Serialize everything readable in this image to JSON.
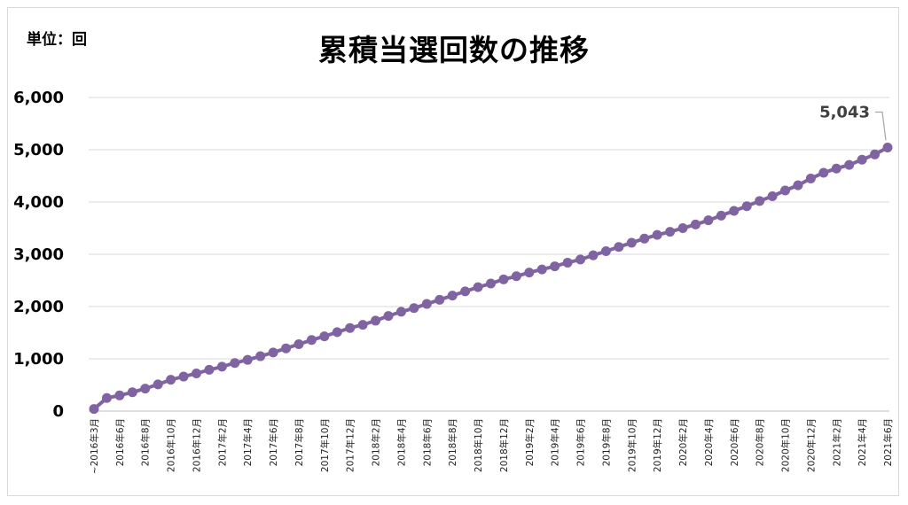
{
  "unit_label": "単位：回",
  "chart_data": {
    "type": "line",
    "title": "累積当選回数の推移",
    "xlabel": "",
    "ylabel": "",
    "ylim": [
      0,
      6000
    ],
    "yticks": [
      "0",
      "1,000",
      "2,000",
      "3,000",
      "4,000",
      "5,000",
      "6,000"
    ],
    "grid": true,
    "legend": "none",
    "series_color": "#8064a2",
    "x": [
      "~2016年3月",
      "2016年5月",
      "2016年6月",
      "2016年7月",
      "2016年8月",
      "2016年9月",
      "2016年10月",
      "2016年11月",
      "2016年12月",
      "2017年1月",
      "2017年2月",
      "2017年3月",
      "2017年4月",
      "2017年5月",
      "2017年6月",
      "2017年7月",
      "2017年8月",
      "2017年9月",
      "2017年10月",
      "2017年11月",
      "2017年12月",
      "2018年1月",
      "2018年2月",
      "2018年3月",
      "2018年4月",
      "2018年5月",
      "2018年6月",
      "2018年7月",
      "2018年8月",
      "2018年9月",
      "2018年10月",
      "2018年11月",
      "2018年12月",
      "2019年1月",
      "2019年2月",
      "2019年3月",
      "2019年4月",
      "2019年5月",
      "2019年6月",
      "2019年7月",
      "2019年8月",
      "2019年9月",
      "2019年10月",
      "2019年11月",
      "2019年12月",
      "2020年1月",
      "2020年2月",
      "2020年3月",
      "2020年4月",
      "2020年5月",
      "2020年6月",
      "2020年7月",
      "2020年8月",
      "2020年9月",
      "2020年10月",
      "2020年11月",
      "2020年12月",
      "2021年1月",
      "2021年2月",
      "2021年3月",
      "2021年4月",
      "2021年5月",
      "2021年6月"
    ],
    "xtick_labels": [
      "~2016年3月",
      "2016年6月",
      "2016年8月",
      "2016年10月",
      "2016年12月",
      "2017年2月",
      "2017年4月",
      "2017年6月",
      "2017年8月",
      "2017年10月",
      "2017年12月",
      "2018年2月",
      "2018年4月",
      "2018年6月",
      "2018年8月",
      "2018年10月",
      "2018年12月",
      "2019年2月",
      "2019年4月",
      "2019年6月",
      "2019年8月",
      "2019年10月",
      "2019年12月",
      "2020年2月",
      "2020年4月",
      "2020年6月",
      "2020年8月",
      "2020年10月",
      "2020年12月",
      "2021年2月",
      "2021年4月",
      "2021年6月"
    ],
    "values": [
      40,
      250,
      300,
      360,
      430,
      510,
      600,
      660,
      720,
      790,
      850,
      920,
      980,
      1050,
      1120,
      1200,
      1280,
      1360,
      1430,
      1510,
      1590,
      1650,
      1730,
      1820,
      1900,
      1970,
      2050,
      2130,
      2210,
      2290,
      2370,
      2440,
      2520,
      2580,
      2650,
      2710,
      2770,
      2840,
      2900,
      2980,
      3060,
      3140,
      3220,
      3300,
      3370,
      3430,
      3500,
      3570,
      3650,
      3740,
      3830,
      3920,
      4020,
      4110,
      4220,
      4320,
      4450,
      4560,
      4640,
      4710,
      4810,
      4910,
      5043
    ],
    "data_labels": [
      {
        "index": 62,
        "text": "5,043"
      }
    ]
  }
}
